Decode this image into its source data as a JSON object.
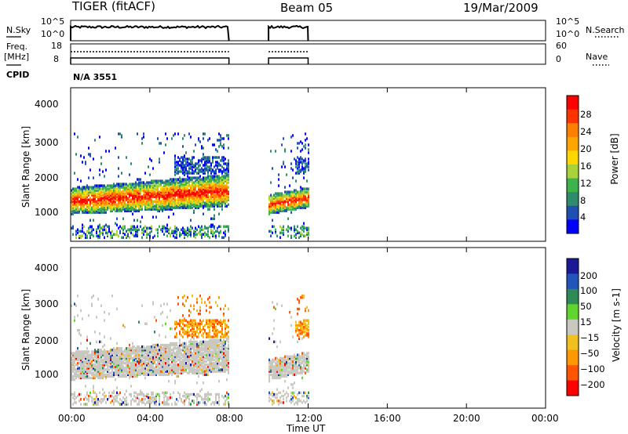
{
  "header": {
    "station": "TIGER (fitACF)",
    "beam": "Beam 05",
    "date": "19/Mar/2009"
  },
  "strip_labels": {
    "nsky": "N.Sky",
    "nsky_ticks": [
      "10^5",
      "10^0"
    ],
    "nsearch": "N.Search",
    "nsearch_ticks": [
      "10^5",
      "10^0"
    ],
    "freq": "Freq.",
    "freq_unit": "[MHz]",
    "freq_ticks": [
      "18",
      "8"
    ],
    "nave": "Nave",
    "nave_ticks": [
      "60",
      "0"
    ],
    "cpid": "CPID",
    "cpid_value": "N/A 3551"
  },
  "colors": {
    "power_scale": [
      "#0000ff",
      "#1f4fb0",
      "#2e8b6b",
      "#3cb44b",
      "#a8d23a",
      "#ffd700",
      "#ffa500",
      "#ff7f00",
      "#ff3300",
      "#ff0000"
    ],
    "velocity_scale": [
      "#1a1a99",
      "#2255bb",
      "#2e8b57",
      "#5fd62e",
      "#c8c8c0",
      "#f0c020",
      "#ff9900",
      "#ff5500",
      "#ff0000"
    ]
  },
  "chart_data": [
    {
      "type": "heatmap",
      "title": "Power",
      "xlabel": "Time UT",
      "ylabel": "Slant Range [km]",
      "x_ticks": [
        "00:00",
        "04:00",
        "08:00",
        "12:00",
        "16:00",
        "20:00",
        "00:00"
      ],
      "y_ticks": [
        "1000",
        "2000",
        "3000",
        "4000"
      ],
      "xlim": [
        0,
        24
      ],
      "ylim": [
        200,
        4600
      ],
      "colorbar_label": "Power [dB]",
      "colorbar_ticks": [
        "4",
        "8",
        "12",
        "16",
        "20",
        "24",
        "28"
      ],
      "data_windows_hours": [
        [
          0.0,
          8.0
        ],
        [
          10.0,
          12.0
        ]
      ]
    },
    {
      "type": "heatmap",
      "title": "Velocity",
      "xlabel": "Time UT",
      "ylabel": "Slant Range [km]",
      "x_ticks": [
        "00:00",
        "04:00",
        "08:00",
        "12:00",
        "16:00",
        "20:00",
        "00:00"
      ],
      "y_ticks": [
        "1000",
        "2000",
        "3000",
        "4000"
      ],
      "xlim": [
        0,
        24
      ],
      "ylim": [
        200,
        4600
      ],
      "colorbar_label": "Velocity [m s-1]",
      "colorbar_ticks": [
        "200",
        "100",
        "50",
        "15",
        "−15",
        "−50",
        "−100",
        "−200"
      ],
      "data_windows_hours": [
        [
          0.0,
          8.0
        ],
        [
          10.0,
          12.0
        ]
      ]
    }
  ]
}
